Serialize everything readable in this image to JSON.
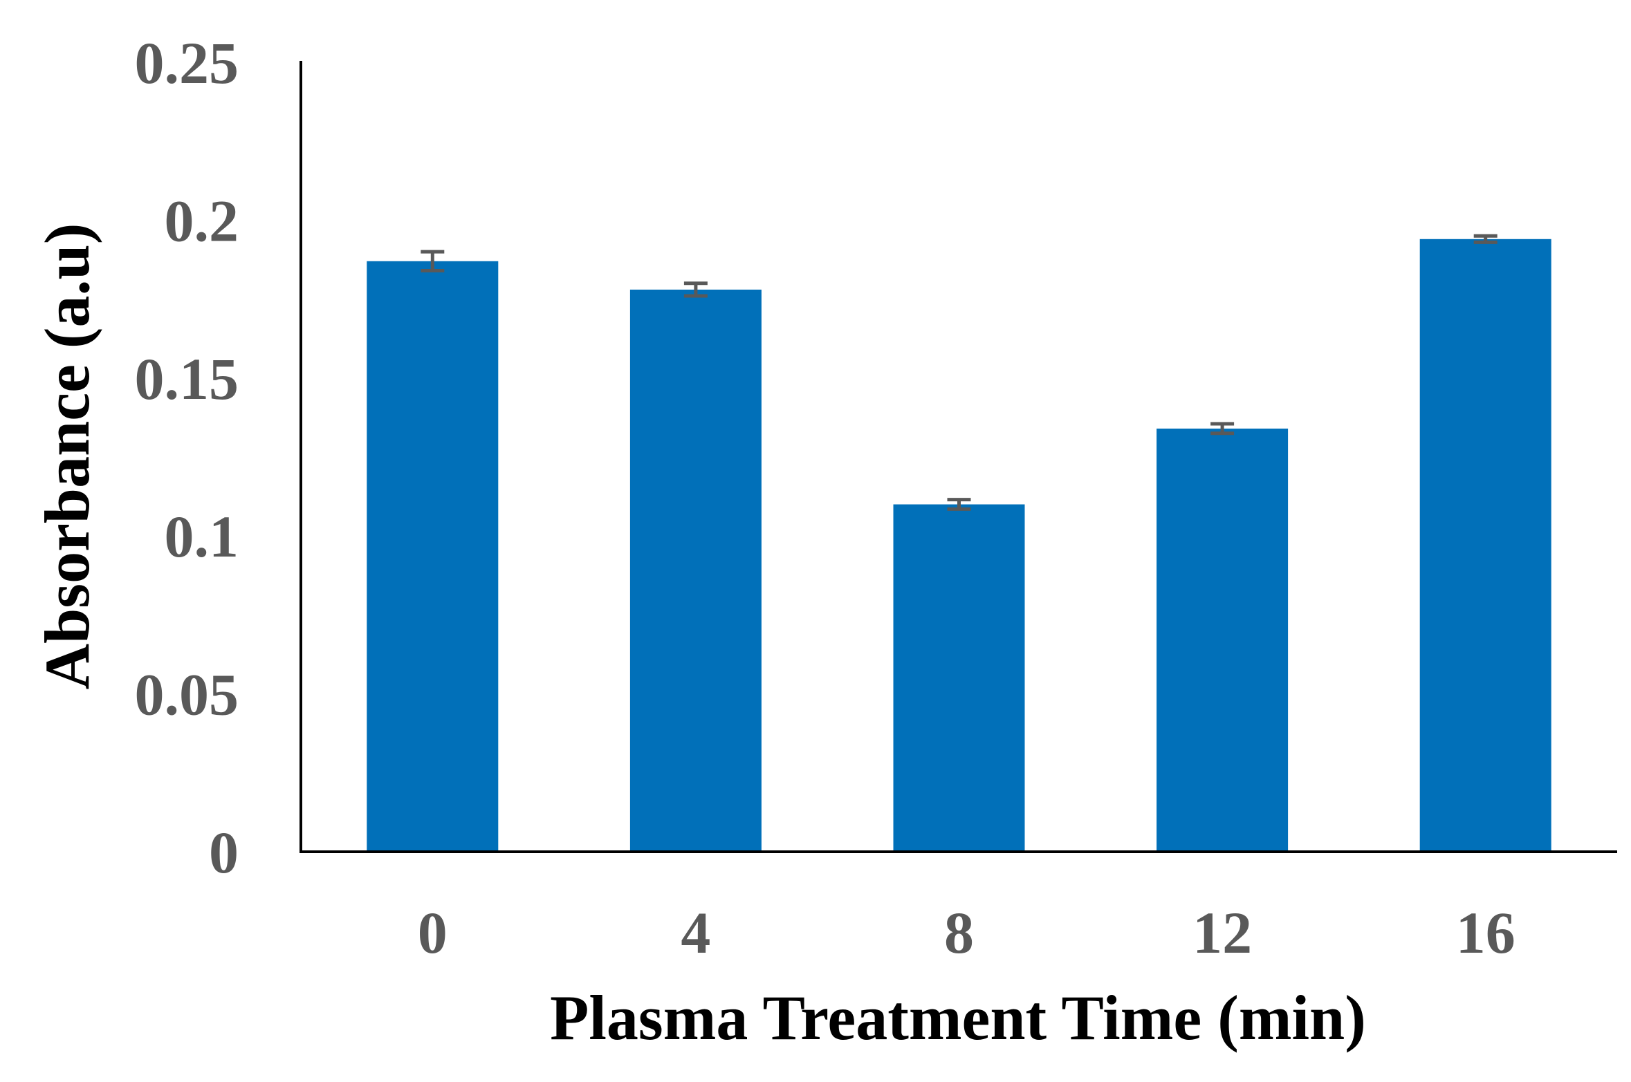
{
  "chart_data": {
    "type": "bar",
    "categories": [
      "0",
      "4",
      "8",
      "12",
      "16"
    ],
    "values": [
      0.187,
      0.178,
      0.11,
      0.134,
      0.194
    ],
    "errors": [
      0.003,
      0.002,
      0.0015,
      0.0015,
      0.001
    ],
    "xlabel": "Plasma Treatment Time (min)",
    "ylabel": "Absorbance (a.u)",
    "ylim": [
      0,
      0.25
    ],
    "yticks": [
      0,
      0.05,
      0.1,
      0.15,
      0.2,
      0.25
    ],
    "ytick_labels": [
      "0",
      "0.05",
      "0.1",
      "0.15",
      "0.2",
      "0.25"
    ],
    "grid": false,
    "colors": {
      "bar": "#0170B9",
      "error_bar": "#595959",
      "axis": "#000000",
      "tick_text": "#595959"
    }
  }
}
